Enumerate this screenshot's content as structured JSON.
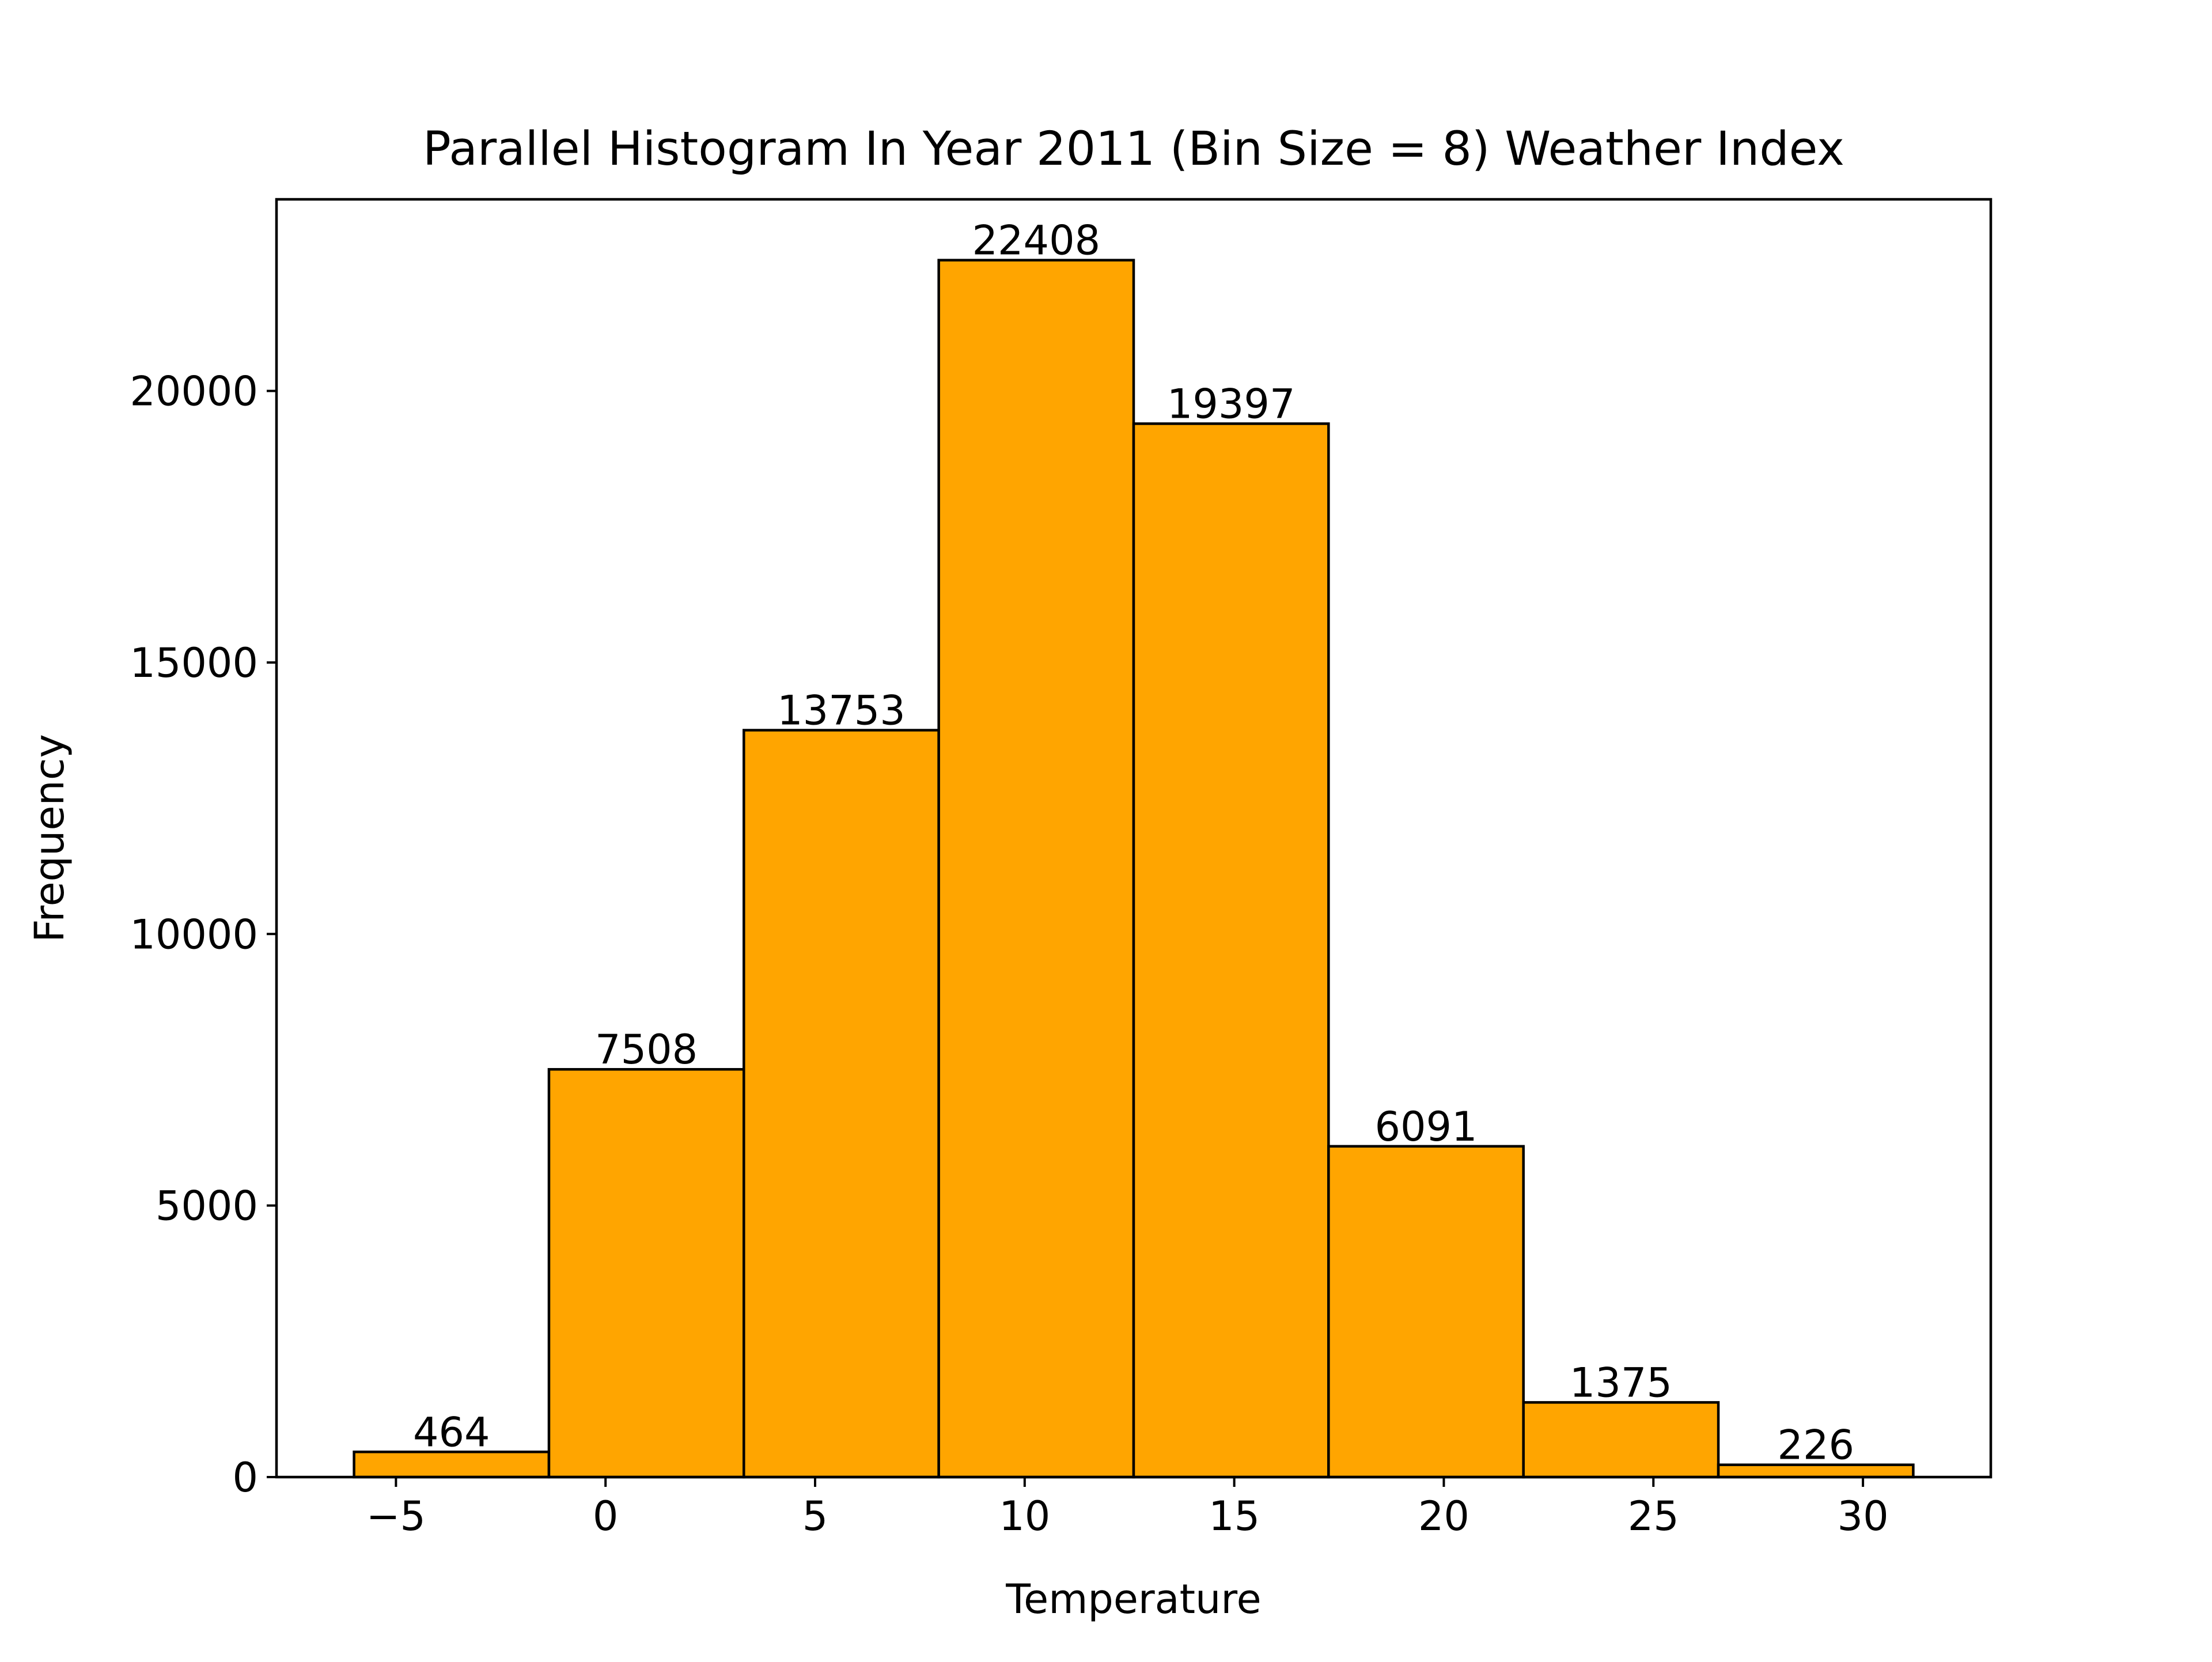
{
  "chart_data": {
    "type": "bar",
    "title": "Parallel Histogram In Year 2011 (Bin Size = 8) Weather Index",
    "xlabel": "Temperature",
    "ylabel": "Frequency",
    "bins": [
      {
        "start": -6.0,
        "end": -1.35,
        "value": 464,
        "label": "464"
      },
      {
        "start": -1.35,
        "end": 3.3,
        "value": 7508,
        "label": "7508"
      },
      {
        "start": 3.3,
        "end": 7.95,
        "value": 13753,
        "label": "13753"
      },
      {
        "start": 7.95,
        "end": 12.6,
        "value": 22408,
        "label": "22408"
      },
      {
        "start": 12.6,
        "end": 17.25,
        "value": 19397,
        "label": "19397"
      },
      {
        "start": 17.25,
        "end": 21.9,
        "value": 6091,
        "label": "6091"
      },
      {
        "start": 21.9,
        "end": 26.55,
        "value": 1375,
        "label": "1375"
      },
      {
        "start": 26.55,
        "end": 31.2,
        "value": 226,
        "label": "226"
      }
    ],
    "xlim": [
      -7.85,
      33.05
    ],
    "ylim": [
      0,
      23528
    ],
    "xticks": [
      -5,
      0,
      5,
      10,
      15,
      20,
      25,
      30
    ],
    "xtick_labels": [
      "−5",
      "0",
      "5",
      "10",
      "15",
      "20",
      "25",
      "30"
    ],
    "yticks": [
      0,
      5000,
      10000,
      15000,
      20000
    ],
    "ytick_labels": [
      "0",
      "5000",
      "10000",
      "15000",
      "20000"
    ],
    "grid": false,
    "colors": {
      "bar_fill": "#FFA500",
      "bar_edge": "#000000"
    }
  }
}
